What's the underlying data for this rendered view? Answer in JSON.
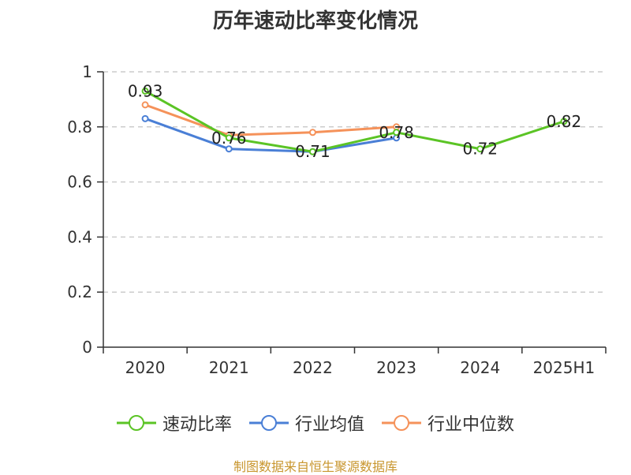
{
  "chart_data": {
    "type": "line",
    "title": "历年速动比率变化情况",
    "categories": [
      "2020",
      "2021",
      "2022",
      "2023",
      "2024",
      "2025H1"
    ],
    "ylim": [
      0,
      1
    ],
    "yticks": [
      "0",
      "0.2",
      "0.4",
      "0.6",
      "0.8",
      "1"
    ],
    "yticks_values": [
      0,
      0.2,
      0.4,
      0.6,
      0.8,
      1
    ],
    "grid": true,
    "legend_position": "bottom",
    "series": [
      {
        "name": "速动比率",
        "color": "#5bc425",
        "values": [
          0.93,
          0.76,
          0.71,
          0.78,
          0.72,
          0.82
        ],
        "labels": [
          "0.93",
          "0.76",
          "0.71",
          "0.78",
          "0.72",
          "0.82"
        ]
      },
      {
        "name": "行业均值",
        "color": "#4a7fd6",
        "values": [
          0.83,
          0.72,
          0.71,
          0.76,
          null,
          null
        ]
      },
      {
        "name": "行业中位数",
        "color": "#f5925a",
        "values": [
          0.88,
          0.77,
          0.78,
          0.8,
          null,
          null
        ]
      }
    ]
  },
  "source_text": "制图数据来自恒生聚源数据库"
}
